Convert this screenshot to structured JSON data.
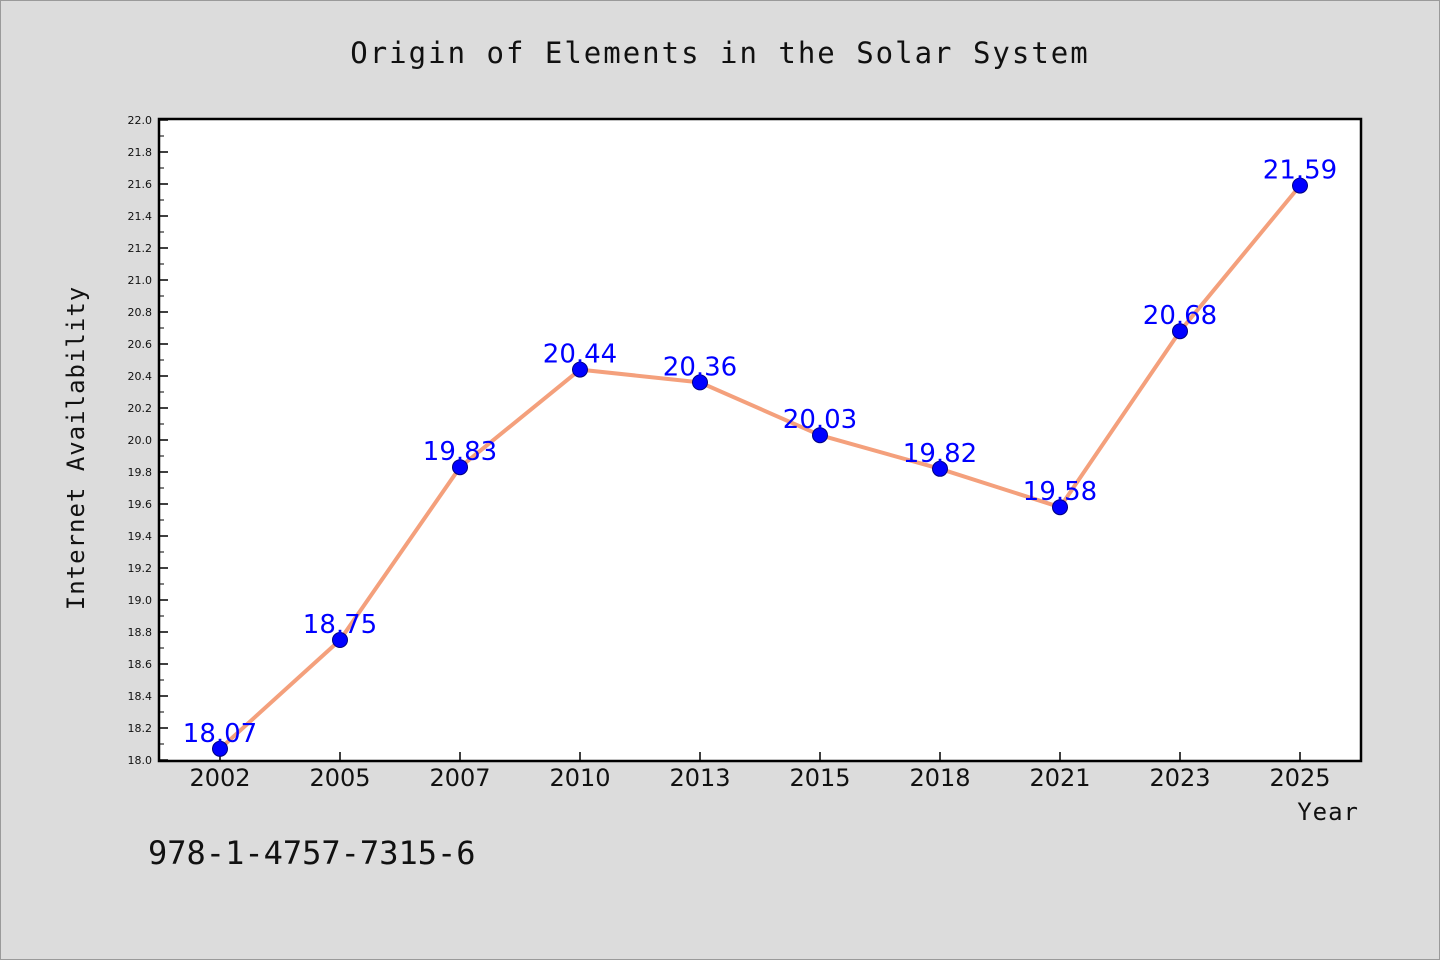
{
  "chart_data": {
    "type": "line",
    "title": "Origin of Elements in the Solar System",
    "xlabel": "Year",
    "ylabel": "Internet Availability",
    "categories": [
      "2002",
      "2005",
      "2007",
      "2010",
      "2013",
      "2015",
      "2018",
      "2021",
      "2023",
      "2025"
    ],
    "series": [
      {
        "values": [
          18.07,
          18.75,
          19.83,
          20.44,
          20.36,
          20.03,
          19.82,
          19.58,
          20.68,
          21.59
        ],
        "labels": [
          "18.07",
          "18.75",
          "19.83",
          "20.44",
          "20.36",
          "20.03",
          "19.82",
          "19.58",
          "20.68",
          "21.59"
        ],
        "line_color": "#f4a07c",
        "marker_color": "#0000ff"
      }
    ],
    "ylim": [
      18.0,
      22.0
    ],
    "yticks": [
      "18.0",
      "18.2",
      "18.4",
      "18.6",
      "18.8",
      "19.0",
      "19.2",
      "19.4",
      "19.6",
      "19.8",
      "20.0",
      "20.2",
      "20.4",
      "20.6",
      "20.8",
      "21.0",
      "21.2",
      "21.4",
      "21.6",
      "21.8",
      "22.0"
    ],
    "grid": false,
    "legend": "none"
  },
  "footer": {
    "text": "978-1-4757-7315-6"
  },
  "colors": {
    "background": "#dcdcdc",
    "plot_background": "#ffffff",
    "data_label": "#0000ff"
  }
}
